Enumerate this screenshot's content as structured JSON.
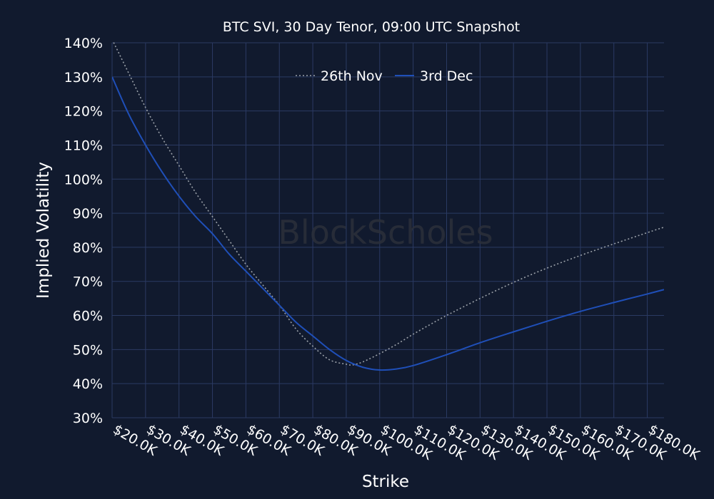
{
  "chart_data": {
    "type": "line",
    "title": "BTC SVI, 30 Day Tenor, 09:00 UTC Snapshot",
    "xlabel": "Strike",
    "ylabel": "Implied Volatility",
    "xlim": [
      20000,
      185000
    ],
    "ylim": [
      30,
      140
    ],
    "x_ticks": [
      20000,
      30000,
      40000,
      50000,
      60000,
      70000,
      80000,
      90000,
      100000,
      110000,
      120000,
      130000,
      140000,
      150000,
      160000,
      170000,
      180000
    ],
    "x_tick_labels": [
      "$20.0K",
      "$30.0K",
      "$40.0K",
      "$50.0K",
      "$60.0K",
      "$70.0K",
      "$80.0K",
      "$90.0K",
      "$100.0K",
      "$110.0K",
      "$120.0K",
      "$130.0K",
      "$140.0K",
      "$150.0K",
      "$160.0K",
      "$170.0K",
      "$180.0K"
    ],
    "y_ticks": [
      30,
      40,
      50,
      60,
      70,
      80,
      90,
      100,
      110,
      120,
      130,
      140
    ],
    "y_tick_labels": [
      "30%",
      "40%",
      "50%",
      "60%",
      "70%",
      "80%",
      "90%",
      "100%",
      "110%",
      "120%",
      "130%",
      "140%"
    ],
    "grid": true,
    "legend_position": "top-center",
    "series": [
      {
        "name": "26th Nov",
        "style": "dotted",
        "color": "#9aa0a8",
        "x": [
          20000,
          25000,
          30000,
          35000,
          40000,
          45000,
          50000,
          55000,
          60000,
          65000,
          70000,
          75000,
          80000,
          85000,
          90000,
          92000,
          95000,
          100000,
          105000,
          110000,
          115000,
          120000,
          130000,
          140000,
          150000,
          160000,
          170000,
          180000,
          185000
        ],
        "y": [
          141,
          131,
          121,
          112,
          104,
          96,
          89,
          82,
          75,
          69,
          63,
          56,
          51,
          47,
          45.7,
          45.5,
          46.4,
          48.8,
          51.5,
          54.5,
          57.3,
          60,
          65,
          69.7,
          73.9,
          77.6,
          81,
          84.3,
          85.9
        ]
      },
      {
        "name": "3rd Dec",
        "style": "solid",
        "color": "#1f4fb8",
        "x": [
          20000,
          25000,
          30000,
          35000,
          40000,
          45000,
          50000,
          55000,
          60000,
          65000,
          70000,
          75000,
          80000,
          85000,
          90000,
          95000,
          100000,
          105000,
          110000,
          120000,
          130000,
          140000,
          150000,
          160000,
          170000,
          180000,
          185000
        ],
        "y": [
          130,
          119,
          110,
          102,
          95,
          89,
          84,
          78,
          73,
          68,
          63,
          58,
          54,
          50,
          46.8,
          44.8,
          44,
          44.3,
          45.3,
          48.5,
          52,
          55.2,
          58.3,
          61.2,
          63.8,
          66.3,
          67.6
        ]
      }
    ],
    "watermark": "BlockScholes"
  }
}
